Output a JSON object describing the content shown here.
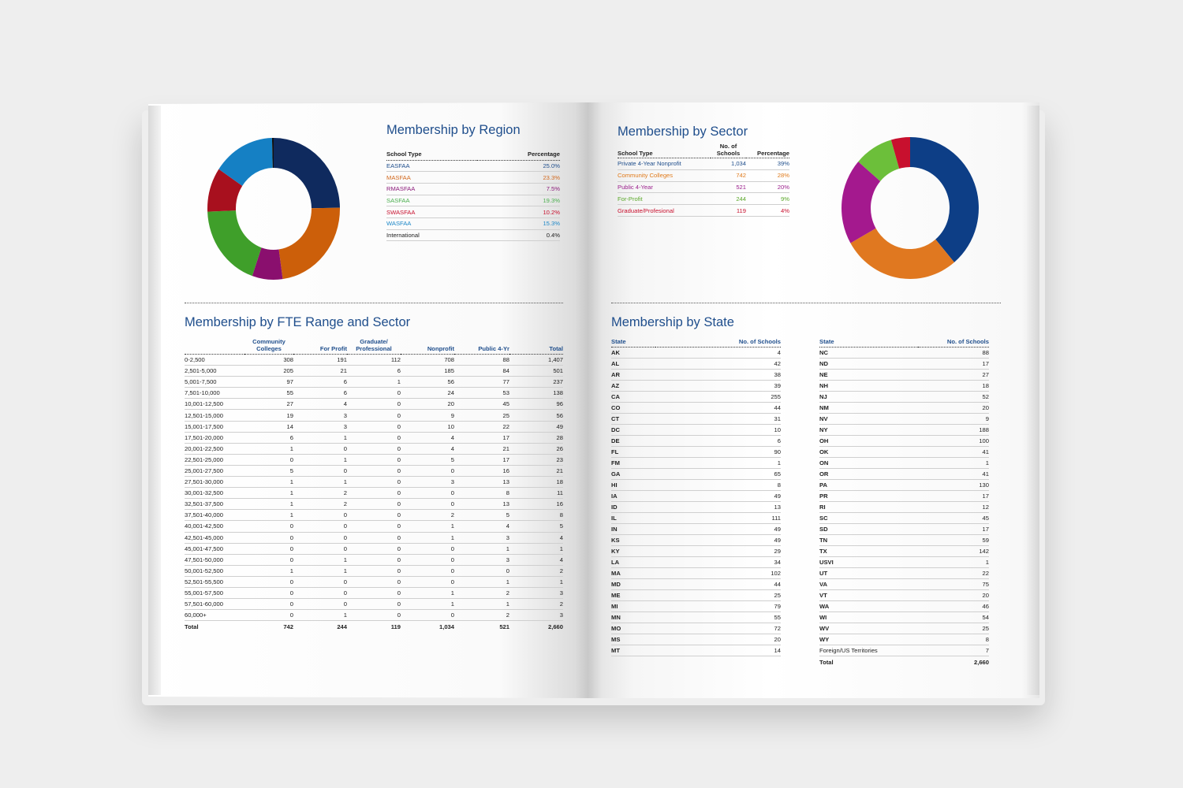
{
  "region": {
    "title": "Membership by Region",
    "headers": {
      "type": "School Type",
      "pct": "Percentage"
    },
    "rows": [
      {
        "name": "EASFAA",
        "pct": "25.0%",
        "color": "#1f4e8c"
      },
      {
        "name": "MASFAA",
        "pct": "23.3%",
        "color": "#d2691e"
      },
      {
        "name": "RMASFAA",
        "pct": "7.5%",
        "color": "#8b1a7a"
      },
      {
        "name": "SASFAA",
        "pct": "19.3%",
        "color": "#4caf50"
      },
      {
        "name": "SWASFAA",
        "pct": "10.2%",
        "color": "#c8102e"
      },
      {
        "name": "WASFAA",
        "pct": "15.3%",
        "color": "#1e88c8"
      },
      {
        "name": "International",
        "pct": "0.4%",
        "color": "#222222"
      }
    ],
    "chart_data": {
      "type": "pie",
      "categories": [
        "EASFAA",
        "MASFAA",
        "RMASFAA",
        "SASFAA",
        "SWASFAA",
        "WASFAA",
        "International"
      ],
      "values": [
        25.0,
        23.3,
        7.5,
        19.3,
        10.2,
        15.3,
        0.4
      ],
      "colors": [
        "#0f2a5e",
        "#cc5f0a",
        "#8a0f6e",
        "#3f9f2a",
        "#a8101e",
        "#1580c4",
        "#111111"
      ]
    }
  },
  "sector": {
    "title": "Membership by Sector",
    "headers": {
      "type": "School Type",
      "count": "No. of Schools",
      "pct": "Percentage"
    },
    "rows": [
      {
        "name": "Private 4-Year Nonprofit",
        "count": "1,034",
        "pct": "39%",
        "color": "#1f4e8c"
      },
      {
        "name": "Community Colleges",
        "count": "742",
        "pct": "28%",
        "color": "#e07b1c"
      },
      {
        "name": "Public 4-Year",
        "count": "521",
        "pct": "20%",
        "color": "#9b1f8c"
      },
      {
        "name": "For-Profit",
        "count": "244",
        "pct": "9%",
        "color": "#5aa82a"
      },
      {
        "name": "Graduate/Profesional",
        "count": "119",
        "pct": "4%",
        "color": "#c8102e"
      }
    ],
    "chart_data": {
      "type": "pie",
      "categories": [
        "Private 4-Year Nonprofit",
        "Community Colleges",
        "Public 4-Year",
        "For-Profit",
        "Graduate/Profesional"
      ],
      "values": [
        1034,
        742,
        521,
        244,
        119
      ],
      "colors": [
        "#0d3e86",
        "#e07820",
        "#a4198e",
        "#6cbf3a",
        "#c8102e"
      ]
    }
  },
  "fte": {
    "title": "Membership by FTE Range and Sector",
    "headers": [
      "",
      "Community Colleges",
      "For Profit",
      "Graduate/ Professional",
      "Nonprofit",
      "Public 4-Yr",
      "Total"
    ],
    "rows": [
      [
        "0-2,500",
        "308",
        "191",
        "112",
        "708",
        "88",
        "1,407"
      ],
      [
        "2,501-5,000",
        "205",
        "21",
        "6",
        "185",
        "84",
        "501"
      ],
      [
        "5,001-7,500",
        "97",
        "6",
        "1",
        "56",
        "77",
        "237"
      ],
      [
        "7,501-10,000",
        "55",
        "6",
        "0",
        "24",
        "53",
        "138"
      ],
      [
        "10,001-12,500",
        "27",
        "4",
        "0",
        "20",
        "45",
        "96"
      ],
      [
        "12,501-15,000",
        "19",
        "3",
        "0",
        "9",
        "25",
        "56"
      ],
      [
        "15,001-17,500",
        "14",
        "3",
        "0",
        "10",
        "22",
        "49"
      ],
      [
        "17,501-20,000",
        "6",
        "1",
        "0",
        "4",
        "17",
        "28"
      ],
      [
        "20,001-22,500",
        "1",
        "0",
        "0",
        "4",
        "21",
        "26"
      ],
      [
        "22,501-25,000",
        "0",
        "1",
        "0",
        "5",
        "17",
        "23"
      ],
      [
        "25,001-27,500",
        "5",
        "0",
        "0",
        "0",
        "16",
        "21"
      ],
      [
        "27,501-30,000",
        "1",
        "1",
        "0",
        "3",
        "13",
        "18"
      ],
      [
        "30,001-32,500",
        "1",
        "2",
        "0",
        "0",
        "8",
        "11"
      ],
      [
        "32,501-37,500",
        "1",
        "2",
        "0",
        "0",
        "13",
        "16"
      ],
      [
        "37,501-40,000",
        "1",
        "0",
        "0",
        "2",
        "5",
        "8"
      ],
      [
        "40,001-42,500",
        "0",
        "0",
        "0",
        "1",
        "4",
        "5"
      ],
      [
        "42,501-45,000",
        "0",
        "0",
        "0",
        "1",
        "3",
        "4"
      ],
      [
        "45,001-47,500",
        "0",
        "0",
        "0",
        "0",
        "1",
        "1"
      ],
      [
        "47,501-50,000",
        "0",
        "1",
        "0",
        "0",
        "3",
        "4"
      ],
      [
        "50,001-52,500",
        "1",
        "1",
        "0",
        "0",
        "0",
        "2"
      ],
      [
        "52,501-55,500",
        "0",
        "0",
        "0",
        "0",
        "1",
        "1"
      ],
      [
        "55,001-57,500",
        "0",
        "0",
        "0",
        "1",
        "2",
        "3"
      ],
      [
        "57,501-60,000",
        "0",
        "0",
        "0",
        "1",
        "1",
        "2"
      ],
      [
        "60,000+",
        "0",
        "1",
        "0",
        "0",
        "2",
        "3"
      ]
    ],
    "total": [
      "Total",
      "742",
      "244",
      "119",
      "1,034",
      "521",
      "2,660"
    ]
  },
  "state": {
    "title": "Membership by State",
    "headers": {
      "state": "State",
      "count": "No. of Schools"
    },
    "left": [
      [
        "AK",
        "4"
      ],
      [
        "AL",
        "42"
      ],
      [
        "AR",
        "38"
      ],
      [
        "AZ",
        "39"
      ],
      [
        "CA",
        "255"
      ],
      [
        "CO",
        "44"
      ],
      [
        "CT",
        "31"
      ],
      [
        "DC",
        "10"
      ],
      [
        "DE",
        "6"
      ],
      [
        "FL",
        "90"
      ],
      [
        "FM",
        "1"
      ],
      [
        "GA",
        "65"
      ],
      [
        "HI",
        "8"
      ],
      [
        "IA",
        "49"
      ],
      [
        "ID",
        "13"
      ],
      [
        "IL",
        "111"
      ],
      [
        "IN",
        "49"
      ],
      [
        "KS",
        "49"
      ],
      [
        "KY",
        "29"
      ],
      [
        "LA",
        "34"
      ],
      [
        "MA",
        "102"
      ],
      [
        "MD",
        "44"
      ],
      [
        "ME",
        "25"
      ],
      [
        "MI",
        "79"
      ],
      [
        "MN",
        "55"
      ],
      [
        "MO",
        "72"
      ],
      [
        "MS",
        "20"
      ],
      [
        "MT",
        "14"
      ]
    ],
    "right": [
      [
        "NC",
        "88"
      ],
      [
        "ND",
        "17"
      ],
      [
        "NE",
        "27"
      ],
      [
        "NH",
        "18"
      ],
      [
        "NJ",
        "52"
      ],
      [
        "NM",
        "20"
      ],
      [
        "NV",
        "9"
      ],
      [
        "NY",
        "188"
      ],
      [
        "OH",
        "100"
      ],
      [
        "OK",
        "41"
      ],
      [
        "ON",
        "1"
      ],
      [
        "OR",
        "41"
      ],
      [
        "PA",
        "130"
      ],
      [
        "PR",
        "17"
      ],
      [
        "RI",
        "12"
      ],
      [
        "SC",
        "45"
      ],
      [
        "SD",
        "17"
      ],
      [
        "TN",
        "59"
      ],
      [
        "TX",
        "142"
      ],
      [
        "USVI",
        "1"
      ],
      [
        "UT",
        "22"
      ],
      [
        "VA",
        "75"
      ],
      [
        "VT",
        "20"
      ],
      [
        "WA",
        "46"
      ],
      [
        "WI",
        "54"
      ],
      [
        "WV",
        "25"
      ],
      [
        "WY",
        "8"
      ],
      [
        "Foreign/US Territories",
        "7"
      ]
    ],
    "total": [
      "Total",
      "2,660"
    ]
  }
}
